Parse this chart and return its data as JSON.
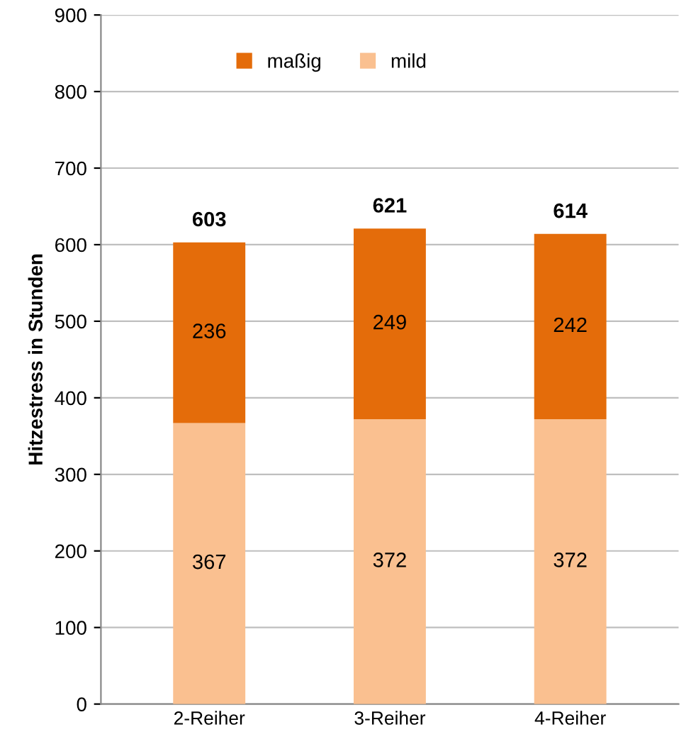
{
  "chart_data": {
    "type": "bar",
    "stacked": true,
    "ylabel": "Hitzestress in Stunden",
    "categories": [
      "2-Reiher",
      "3-Reiher",
      "4-Reiher"
    ],
    "series": [
      {
        "name": "mild",
        "color": "#fac090",
        "values": [
          367,
          372,
          372
        ]
      },
      {
        "name": "maßig",
        "color": "#e46c0a",
        "values": [
          236,
          249,
          242
        ]
      }
    ],
    "totals": [
      "603",
      "621",
      "614"
    ],
    "data_labels": true,
    "ylim": [
      0,
      900
    ],
    "yticks": [
      0,
      100,
      200,
      300,
      400,
      500,
      600,
      700,
      800,
      900
    ],
    "grid": "y",
    "legend": "top"
  }
}
